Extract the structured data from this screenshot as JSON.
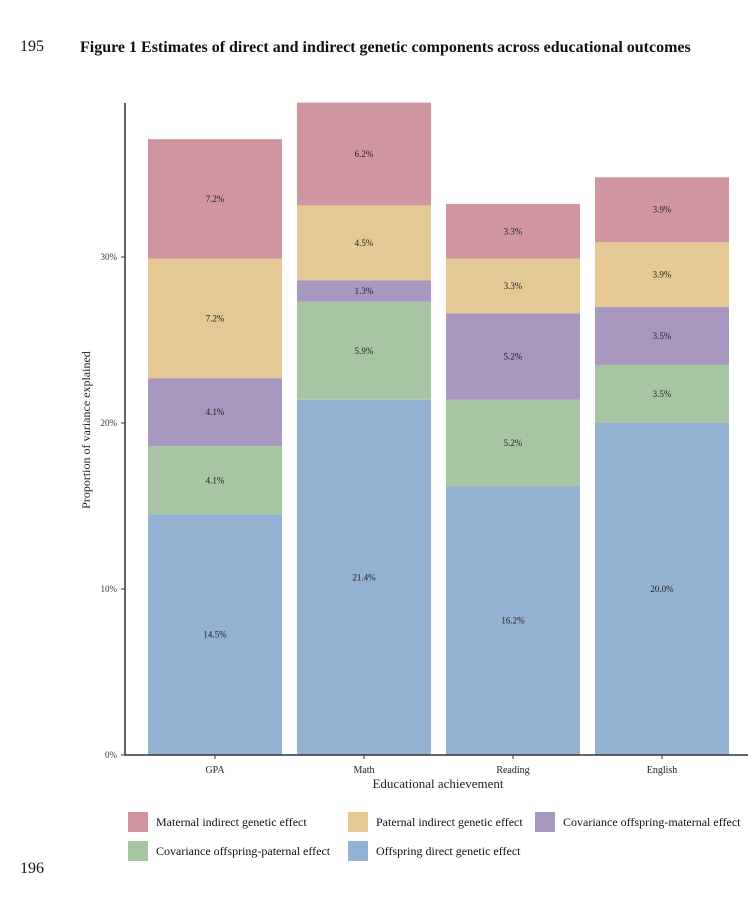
{
  "page": {
    "line_top": "195",
    "line_bottom": "196",
    "figure_title": "Figure 1 Estimates of direct and indirect genetic components across educational outcomes"
  },
  "chart_data": {
    "type": "bar",
    "stacked": true,
    "title": "Figure 1 Estimates of direct and indirect genetic components across educational outcomes",
    "xlabel": "Educational achievement",
    "ylabel": "Proportion of variance explained",
    "ylim": [
      0,
      39
    ],
    "yticks": [
      {
        "value": 0,
        "label": "0%"
      },
      {
        "value": 10,
        "label": "10%"
      },
      {
        "value": 20,
        "label": "20%"
      },
      {
        "value": 30,
        "label": "30%"
      }
    ],
    "categories": [
      "GPA",
      "Math",
      "Reading",
      "English"
    ],
    "series": [
      {
        "name": "Offspring direct genetic effect",
        "color": "#93b1d2",
        "values": [
          14.5,
          21.4,
          16.2,
          20.0
        ],
        "labels": [
          "14.5%",
          "21.4%",
          "16.2%",
          "20.0%"
        ]
      },
      {
        "name": "Covariance offspring-paternal effect",
        "color": "#a8c5a3",
        "values": [
          4.1,
          5.9,
          5.2,
          3.5
        ],
        "labels": [
          "4.1%",
          "5.9%",
          "5.2%",
          "3.5%"
        ]
      },
      {
        "name": "Covariance offspring-maternal effect",
        "color": "#a897bf",
        "values": [
          4.1,
          1.3,
          5.2,
          3.5
        ],
        "labels": [
          "4.1%",
          "1.3%",
          "5.2%",
          "3.5%"
        ]
      },
      {
        "name": "Paternal indirect genetic effect",
        "color": "#e4c995",
        "values": [
          7.2,
          4.5,
          3.3,
          3.9
        ],
        "labels": [
          "7.2%",
          "4.5%",
          "3.3%",
          "3.9%"
        ]
      },
      {
        "name": "Maternal indirect genetic effect",
        "color": "#cf96a0",
        "values": [
          7.2,
          6.2,
          3.3,
          3.9
        ],
        "labels": [
          "7.2%",
          "6.2%",
          "3.3%",
          "3.9%"
        ]
      }
    ],
    "legend": {
      "position": "bottom",
      "rows": [
        [
          "Maternal indirect genetic effect",
          "Paternal indirect genetic effect",
          "Covariance offspring-maternal effect"
        ],
        [
          "Covariance offspring-paternal effect",
          "Offspring direct genetic effect"
        ]
      ]
    }
  }
}
